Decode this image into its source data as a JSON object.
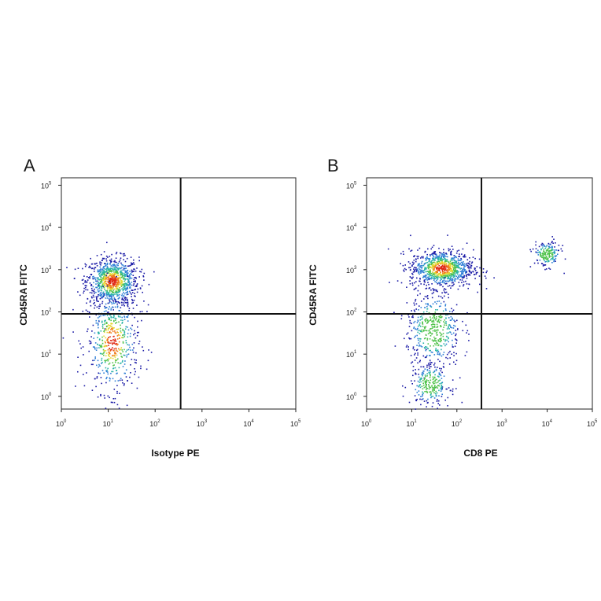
{
  "chart_data": [
    {
      "type": "scatter",
      "panel_label": "A",
      "xlabel": "Isotype PE",
      "ylabel": "CD45RA FITC",
      "xscale": "log",
      "yscale": "log",
      "xlim": [
        1,
        100000
      ],
      "ylim": [
        0.5,
        150000
      ],
      "x_ticks": [
        {
          "base": "10",
          "exp": "0",
          "value": 1
        },
        {
          "base": "10",
          "exp": "1",
          "value": 10
        },
        {
          "base": "10",
          "exp": "2",
          "value": 100
        },
        {
          "base": "10",
          "exp": "3",
          "value": 1000
        },
        {
          "base": "10",
          "exp": "4",
          "value": 10000
        },
        {
          "base": "10",
          "exp": "5",
          "value": 100000
        }
      ],
      "y_ticks": [
        {
          "base": "10",
          "exp": "0",
          "value": 1
        },
        {
          "base": "10",
          "exp": "1",
          "value": 10
        },
        {
          "base": "10",
          "exp": "2",
          "value": 100
        },
        {
          "base": "10",
          "exp": "3",
          "value": 1000
        },
        {
          "base": "10",
          "exp": "4",
          "value": 10000
        },
        {
          "base": "10",
          "exp": "5",
          "value": 100000
        }
      ],
      "quadrant_gate": {
        "x": 350,
        "y": 90
      },
      "populations": [
        {
          "center_x": 12,
          "center_y": 550,
          "spread_log_x": 0.28,
          "spread_log_y": 0.28,
          "points": 900
        },
        {
          "center_x": 12,
          "center_y": 20,
          "spread_log_x": 0.28,
          "spread_log_y": 0.6,
          "points": 550
        }
      ],
      "color_scale": [
        "#1a1aa6",
        "#2f7fd6",
        "#2bb3a8",
        "#4fc24a",
        "#e4d72e",
        "#f07c1b",
        "#e02a16"
      ]
    },
    {
      "type": "scatter",
      "panel_label": "B",
      "xlabel": "CD8 PE",
      "ylabel": "CD45RA FITC",
      "xscale": "log",
      "yscale": "log",
      "xlim": [
        1,
        100000
      ],
      "ylim": [
        0.5,
        150000
      ],
      "x_ticks": [
        {
          "base": "10",
          "exp": "0",
          "value": 1
        },
        {
          "base": "10",
          "exp": "1",
          "value": 10
        },
        {
          "base": "10",
          "exp": "2",
          "value": 100
        },
        {
          "base": "10",
          "exp": "3",
          "value": 1000
        },
        {
          "base": "10",
          "exp": "4",
          "value": 10000
        },
        {
          "base": "10",
          "exp": "5",
          "value": 100000
        }
      ],
      "y_ticks": [
        {
          "base": "10",
          "exp": "0",
          "value": 1
        },
        {
          "base": "10",
          "exp": "1",
          "value": 10
        },
        {
          "base": "10",
          "exp": "2",
          "value": 100
        },
        {
          "base": "10",
          "exp": "3",
          "value": 1000
        },
        {
          "base": "10",
          "exp": "4",
          "value": 10000
        },
        {
          "base": "10",
          "exp": "5",
          "value": 100000
        }
      ],
      "quadrant_gate": {
        "x": 350,
        "y": 90
      },
      "populations": [
        {
          "center_x": 45,
          "center_y": 1100,
          "spread_log_x": 0.35,
          "spread_log_y": 0.22,
          "points": 950
        },
        {
          "center_x": 30,
          "center_y": 40,
          "spread_log_x": 0.3,
          "spread_log_y": 0.45,
          "points": 450
        },
        {
          "center_x": 25,
          "center_y": 2,
          "spread_log_x": 0.22,
          "spread_log_y": 0.25,
          "points": 250
        },
        {
          "center_x": 9500,
          "center_y": 2400,
          "spread_log_x": 0.15,
          "spread_log_y": 0.15,
          "points": 180
        }
      ],
      "color_scale": [
        "#1a1aa6",
        "#2f7fd6",
        "#2bb3a8",
        "#4fc24a",
        "#e4d72e",
        "#f07c1b",
        "#e02a16"
      ]
    }
  ]
}
